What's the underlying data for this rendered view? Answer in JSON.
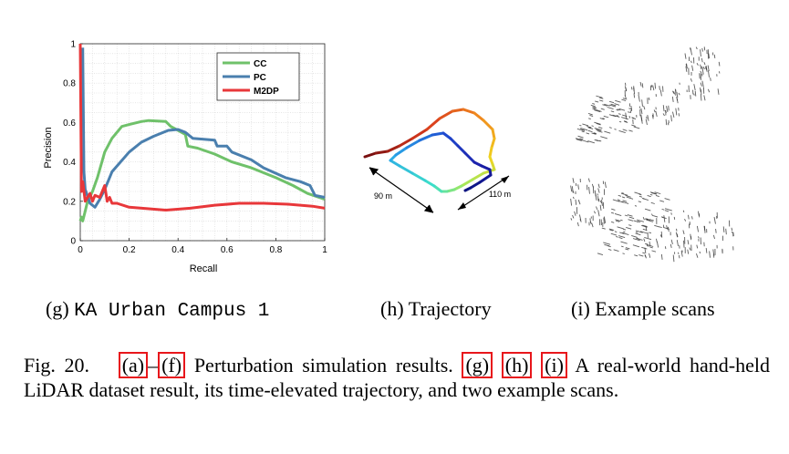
{
  "chart_data": {
    "type": "line",
    "xlabel": "Recall",
    "ylabel": "Precision",
    "xlim": [
      0,
      1
    ],
    "ylim": [
      0,
      1
    ],
    "xticks": [
      "0",
      "0.2",
      "0.4",
      "0.6",
      "0.8",
      "1"
    ],
    "yticks": [
      "0",
      "0.2",
      "0.4",
      "0.6",
      "0.8",
      "1"
    ],
    "grid": true,
    "legend_position": "top-right",
    "series": [
      {
        "name": "CC",
        "color": "#6fc16a",
        "x": [
          0.0,
          0.005,
          0.01,
          0.02,
          0.03,
          0.05,
          0.07,
          0.1,
          0.13,
          0.17,
          0.2,
          0.25,
          0.28,
          0.35,
          0.37,
          0.4,
          0.43,
          0.44,
          0.48,
          0.55,
          0.62,
          0.7,
          0.8,
          0.87,
          0.93,
          1.0
        ],
        "y": [
          0.1,
          0.12,
          0.1,
          0.15,
          0.2,
          0.25,
          0.32,
          0.45,
          0.52,
          0.58,
          0.59,
          0.605,
          0.61,
          0.605,
          0.58,
          0.56,
          0.54,
          0.48,
          0.47,
          0.44,
          0.4,
          0.37,
          0.32,
          0.28,
          0.24,
          0.21
        ]
      },
      {
        "name": "PC",
        "color": "#4a7fae",
        "x": [
          0.01,
          0.015,
          0.02,
          0.04,
          0.06,
          0.08,
          0.1,
          0.13,
          0.2,
          0.25,
          0.3,
          0.36,
          0.4,
          0.43,
          0.46,
          0.55,
          0.56,
          0.6,
          0.62,
          0.7,
          0.75,
          0.84,
          0.9,
          0.94,
          0.96,
          1.0
        ],
        "y": [
          0.98,
          0.35,
          0.26,
          0.19,
          0.17,
          0.21,
          0.26,
          0.35,
          0.45,
          0.5,
          0.53,
          0.56,
          0.565,
          0.55,
          0.52,
          0.51,
          0.48,
          0.48,
          0.45,
          0.41,
          0.37,
          0.32,
          0.3,
          0.28,
          0.23,
          0.22
        ]
      },
      {
        "name": "M2DP",
        "color": "#e8373a",
        "x": [
          0.0,
          0.005,
          0.01,
          0.02,
          0.03,
          0.04,
          0.05,
          0.06,
          0.08,
          0.1,
          0.11,
          0.12,
          0.13,
          0.15,
          0.2,
          0.35,
          0.45,
          0.55,
          0.65,
          0.75,
          0.85,
          0.95,
          1.0
        ],
        "y": [
          1.0,
          0.25,
          0.3,
          0.2,
          0.22,
          0.24,
          0.2,
          0.23,
          0.22,
          0.28,
          0.2,
          0.22,
          0.19,
          0.19,
          0.17,
          0.155,
          0.165,
          0.18,
          0.19,
          0.19,
          0.185,
          0.175,
          0.165
        ]
      }
    ]
  },
  "trajectory": {
    "label_left": "90 m",
    "label_right": "110 m",
    "gradient_colors": [
      "#7a1010",
      "#d93a1e",
      "#f08a1e",
      "#f1d31f",
      "#a6e85a",
      "#3de0c8",
      "#2aa7e8",
      "#1f4bd0",
      "#1c1ea8",
      "#0a1480"
    ]
  },
  "subcaptions": {
    "g_label": "(g)",
    "g_text": "KA Urban Campus 1",
    "h": "(h) Trajectory",
    "i": "(i) Example scans"
  },
  "caption": {
    "fig_label": "Fig. 20.",
    "ref_a": "(a)",
    "dash": "–",
    "ref_f": "(f)",
    "text1": "Perturbation simulation results.",
    "ref_g": "(g)",
    "ref_h": "(h)",
    "ref_i": "(i)",
    "text2": "A real-world hand-held LiDAR dataset result, its time-elevated trajectory, and two example scans."
  }
}
